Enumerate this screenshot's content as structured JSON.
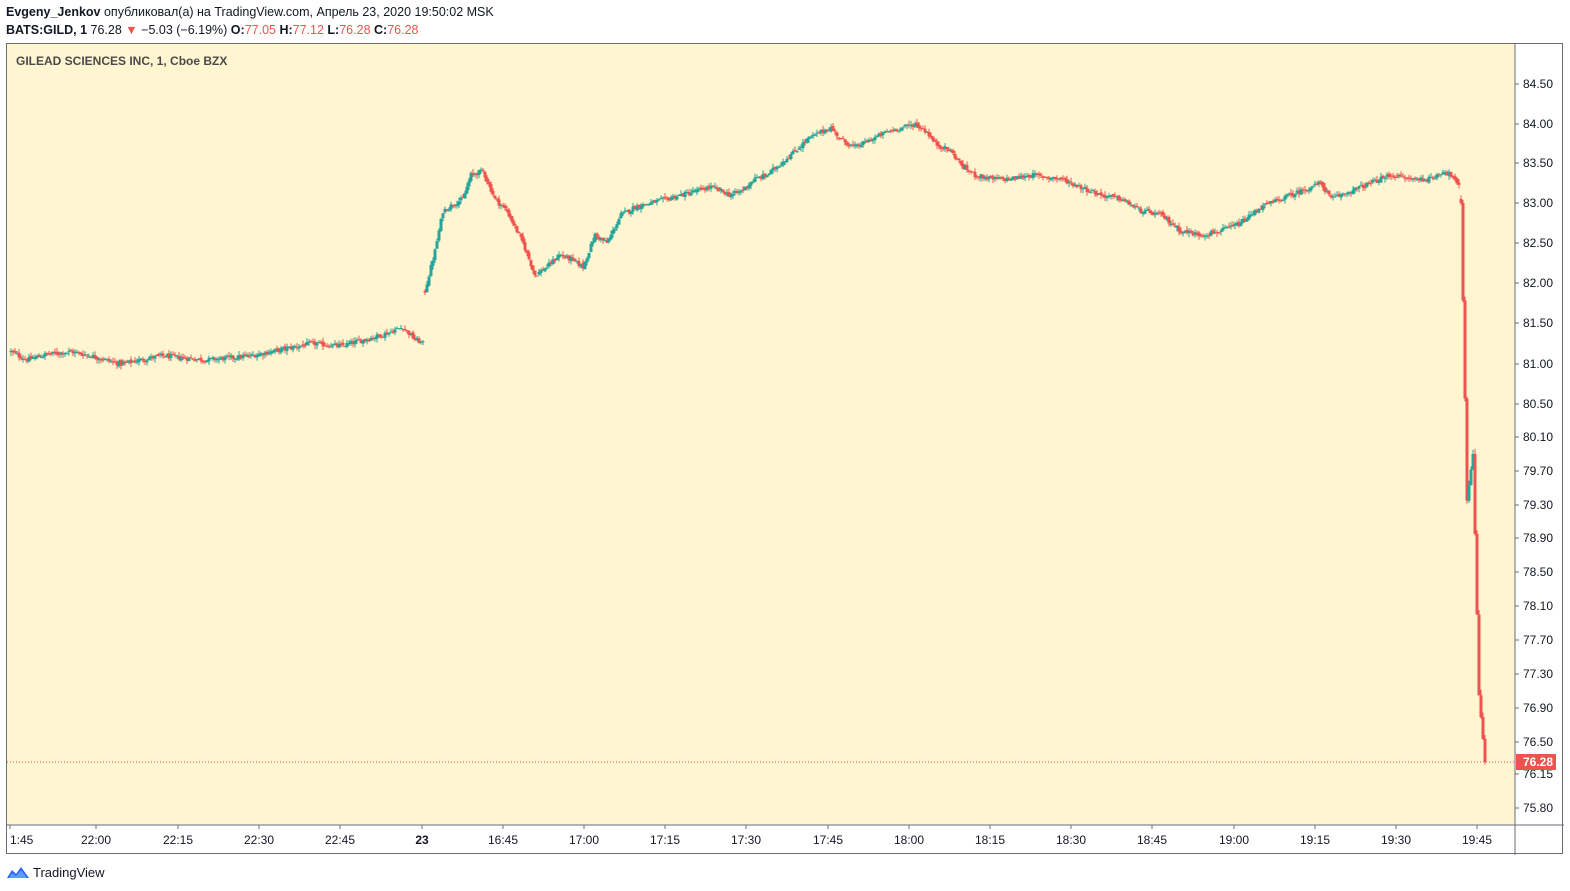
{
  "header": {
    "author": "Evgeny_Jenkov",
    "published_text": "опубликовал(а) на TradingView.com, Апрель 23, 2020 19:50:02 MSK",
    "symbol_interval": "BATS:GILD, 1",
    "last_price": "76.28",
    "change_arrow": "▼",
    "change": "−5.03 (−6.19%)",
    "o_label": "O:",
    "o_value": "77.05",
    "h_label": "H:",
    "h_value": "77.12",
    "l_label": "L:",
    "l_value": "76.28",
    "c_label": "C:",
    "c_value": "76.28"
  },
  "footer": {
    "brand": "TradingView",
    "icon": "tradingview-logo-icon"
  },
  "colors": {
    "background": "#fff5d1",
    "up": "#26a69a",
    "down": "#ef5350",
    "price_line": "#ef5350",
    "border": "#6a6d78"
  },
  "chart_data": {
    "type": "candlestick",
    "title": "GILEAD SCIENCES INC, 1, Cboe BZX",
    "grid": false,
    "ylim": [
      75.4,
      84.9
    ],
    "y_ticks": [
      "84.50",
      "84.00",
      "83.50",
      "83.00",
      "82.50",
      "82.00",
      "81.50",
      "81.00",
      "80.50",
      "80.10",
      "79.70",
      "79.30",
      "78.90",
      "78.50",
      "78.10",
      "77.70",
      "77.30",
      "76.90",
      "76.50",
      "76.15",
      "75.80"
    ],
    "x_ticks": [
      "1:45",
      "22:00",
      "22:15",
      "22:30",
      "22:45",
      "23",
      "16:45",
      "17:00",
      "17:15",
      "17:30",
      "17:45",
      "18:00",
      "18:15",
      "18:30",
      "18:45",
      "19:00",
      "19:15",
      "19:30",
      "19:45"
    ],
    "current_price_label": "76.28",
    "series": [
      {
        "name": "",
        "anchors": [
          [
            0,
            81.15
          ],
          [
            8,
            81.05
          ],
          [
            18,
            81.12
          ],
          [
            30,
            81.15
          ],
          [
            40,
            81.1
          ],
          [
            55,
            81.0
          ],
          [
            75,
            81.1
          ],
          [
            98,
            81.05
          ],
          [
            120,
            81.1
          ],
          [
            140,
            81.2
          ],
          [
            150,
            81.25
          ],
          [
            165,
            81.22
          ],
          [
            185,
            81.35
          ],
          [
            196,
            81.45
          ],
          [
            202,
            81.3
          ],
          [
            206,
            81.25
          ]
        ]
      },
      {
        "name": "",
        "anchors": [
          [
            207,
            81.9
          ],
          [
            212,
            82.4
          ],
          [
            216,
            82.9
          ],
          [
            222,
            83.0
          ],
          [
            226,
            83.05
          ],
          [
            230,
            83.35
          ],
          [
            236,
            83.4
          ],
          [
            242,
            83.05
          ],
          [
            248,
            82.9
          ],
          [
            256,
            82.5
          ],
          [
            262,
            82.1
          ],
          [
            268,
            82.2
          ],
          [
            274,
            82.35
          ],
          [
            280,
            82.3
          ],
          [
            286,
            82.2
          ],
          [
            292,
            82.6
          ],
          [
            298,
            82.5
          ],
          [
            305,
            82.85
          ],
          [
            312,
            82.95
          ],
          [
            320,
            83.0
          ],
          [
            335,
            83.1
          ],
          [
            350,
            83.2
          ],
          [
            360,
            83.1
          ],
          [
            365,
            83.15
          ],
          [
            372,
            83.3
          ],
          [
            378,
            83.35
          ],
          [
            385,
            83.5
          ],
          [
            392,
            83.65
          ],
          [
            398,
            83.8
          ],
          [
            405,
            83.9
          ],
          [
            410,
            83.95
          ],
          [
            415,
            83.8
          ],
          [
            422,
            83.7
          ],
          [
            430,
            83.8
          ],
          [
            438,
            83.9
          ],
          [
            445,
            83.95
          ],
          [
            452,
            84.0
          ],
          [
            458,
            83.9
          ],
          [
            462,
            83.75
          ],
          [
            466,
            83.7
          ],
          [
            470,
            83.65
          ],
          [
            476,
            83.45
          ],
          [
            482,
            83.35
          ],
          [
            490,
            83.3
          ],
          [
            500,
            83.3
          ],
          [
            510,
            83.35
          ],
          [
            525,
            83.3
          ],
          [
            535,
            83.2
          ],
          [
            545,
            83.1
          ],
          [
            555,
            83.05
          ],
          [
            565,
            82.9
          ],
          [
            575,
            82.85
          ],
          [
            585,
            82.65
          ],
          [
            595,
            82.6
          ],
          [
            605,
            82.65
          ],
          [
            615,
            82.75
          ],
          [
            625,
            82.95
          ],
          [
            635,
            83.05
          ],
          [
            645,
            83.15
          ],
          [
            655,
            83.25
          ],
          [
            660,
            83.05
          ],
          [
            670,
            83.15
          ],
          [
            680,
            83.25
          ],
          [
            690,
            83.35
          ],
          [
            700,
            83.3
          ],
          [
            710,
            83.3
          ],
          [
            716,
            83.4
          ],
          [
            720,
            83.35
          ],
          [
            724,
            83.2
          ]
        ]
      },
      {
        "name": "",
        "anchors": [
          [
            725,
            83.0
          ],
          [
            728,
            79.35
          ],
          [
            731,
            79.9
          ],
          [
            734,
            77.05
          ],
          [
            737,
            76.28
          ]
        ]
      }
    ]
  }
}
